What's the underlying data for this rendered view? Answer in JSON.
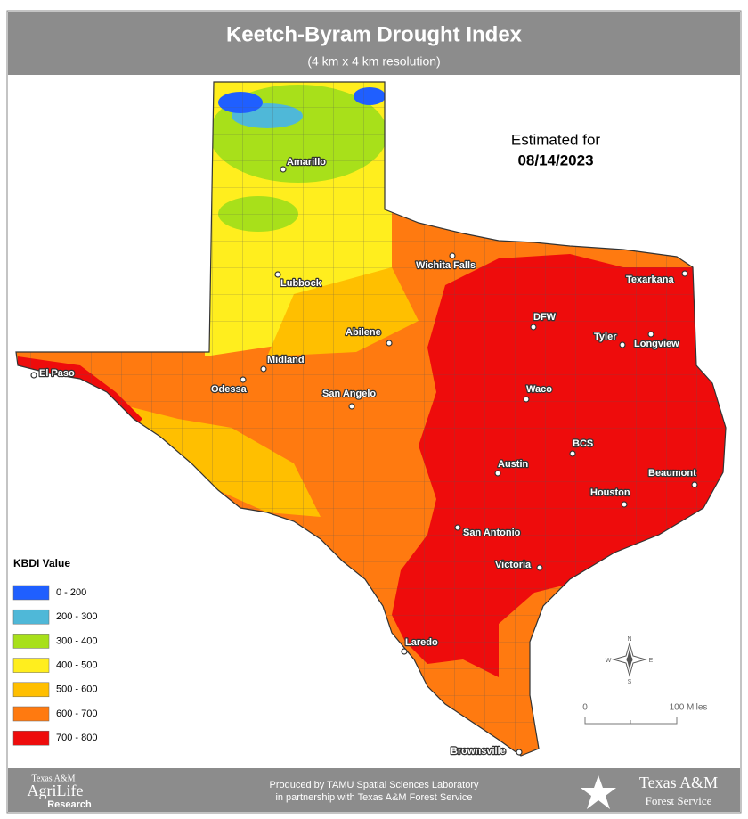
{
  "header": {
    "title": "Keetch-Byram Drought Index",
    "subtitle": "(4 km x 4 km resolution)"
  },
  "estimate": {
    "label": "Estimated for",
    "date": "08/14/2023"
  },
  "cities": [
    "Amarillo",
    "Lubbock",
    "Wichita Falls",
    "Texarkana",
    "DFW",
    "Tyler",
    "Longview",
    "Abilene",
    "Midland",
    "El Paso",
    "Odessa",
    "San Angelo",
    "Waco",
    "BCS",
    "Austin",
    "Beaumont",
    "Houston",
    "San Antonio",
    "Victoria",
    "Laredo",
    "Brownsville"
  ],
  "legend": {
    "title": "KBDI Value",
    "items": [
      {
        "label": "0 - 200",
        "color": "#1f5fff"
      },
      {
        "label": "200 - 300",
        "color": "#4fb8d8"
      },
      {
        "label": "300 - 400",
        "color": "#a8e01a"
      },
      {
        "label": "400 - 500",
        "color": "#ffee1e"
      },
      {
        "label": "500 - 600",
        "color": "#ffbf00"
      },
      {
        "label": "600 - 700",
        "color": "#ff7a10"
      },
      {
        "label": "700 - 800",
        "color": "#ee0c0c"
      }
    ]
  },
  "compass": {
    "north": "N",
    "south": "S",
    "east": "E",
    "west": "W"
  },
  "scale": {
    "start": "0",
    "end": "100 Miles"
  },
  "footer": {
    "left_logo": [
      "Texas A&M",
      "AgriLife",
      "Research"
    ],
    "credit": [
      "Produced by TAMU Spatial Sciences Laboratory",
      "in partnership with Texas A&M Forest Service"
    ],
    "right_logo": [
      "Texas A&M",
      "Forest Service"
    ]
  }
}
